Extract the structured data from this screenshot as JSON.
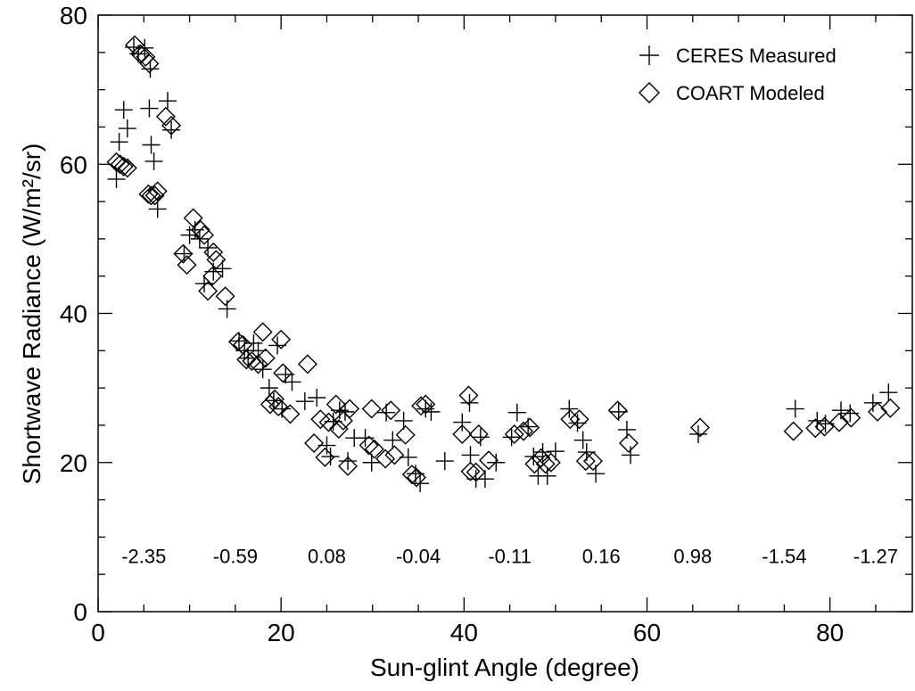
{
  "chart_data": {
    "type": "scatter",
    "xlabel": "Sun-glint Angle (degree)",
    "ylabel": "Shortwave Radiance (W/m²/sr)",
    "xlim": [
      0,
      89
    ],
    "ylim": [
      0,
      80
    ],
    "x_ticks": [
      0,
      20,
      40,
      60,
      80
    ],
    "y_ticks": [
      0,
      20,
      40,
      60,
      80
    ],
    "grid": false,
    "legend_position": "top-right",
    "annotations": [
      {
        "text": "-2.35",
        "x": 5,
        "y": 7.5
      },
      {
        "text": "-0.59",
        "x": 15,
        "y": 7.5
      },
      {
        "text": "0.08",
        "x": 25,
        "y": 7.5
      },
      {
        "text": "-0.04",
        "x": 35,
        "y": 7.5
      },
      {
        "text": "-0.11",
        "x": 45,
        "y": 7.5
      },
      {
        "text": "0.16",
        "x": 55,
        "y": 7.5
      },
      {
        "text": "0.98",
        "x": 65,
        "y": 7.5
      },
      {
        "text": "-1.54",
        "x": 75,
        "y": 7.5
      },
      {
        "text": "-1.27",
        "x": 85,
        "y": 7.5
      }
    ],
    "series": [
      {
        "name": "CERES Measured",
        "marker": "plus",
        "points": [
          [
            2.0,
            58.0
          ],
          [
            2.3,
            63.0
          ],
          [
            2.8,
            67.3
          ],
          [
            3.2,
            64.8
          ],
          [
            3.9,
            75.7
          ],
          [
            4.4,
            74.8
          ],
          [
            5.1,
            75.6
          ],
          [
            5.6,
            67.5
          ],
          [
            5.8,
            62.6
          ],
          [
            6.1,
            60.4
          ],
          [
            6.5,
            54.0
          ],
          [
            5.7,
            72.8
          ],
          [
            7.6,
            68.5
          ],
          [
            8.0,
            64.6
          ],
          [
            9.4,
            48.0
          ],
          [
            10.0,
            50.5
          ],
          [
            10.6,
            51.2
          ],
          [
            11.1,
            50.0
          ],
          [
            11.6,
            44.0
          ],
          [
            12.0,
            48.8
          ],
          [
            12.6,
            45.6
          ],
          [
            13.6,
            46.0
          ],
          [
            14.1,
            40.6
          ],
          [
            15.4,
            36.3
          ],
          [
            16.0,
            35.0
          ],
          [
            16.4,
            34.0
          ],
          [
            17.0,
            36.0
          ],
          [
            17.5,
            35.0
          ],
          [
            18.0,
            32.5
          ],
          [
            18.7,
            30.0
          ],
          [
            19.2,
            28.3
          ],
          [
            19.6,
            35.7
          ],
          [
            20.1,
            27.2
          ],
          [
            20.5,
            31.8
          ],
          [
            21.2,
            30.8
          ],
          [
            22.6,
            28.2
          ],
          [
            23.9,
            28.7
          ],
          [
            25.0,
            22.3
          ],
          [
            25.4,
            20.8
          ],
          [
            25.7,
            25.5
          ],
          [
            26.4,
            27.0
          ],
          [
            27.0,
            26.8
          ],
          [
            27.3,
            20.2
          ],
          [
            28.0,
            23.3
          ],
          [
            29.2,
            23.3
          ],
          [
            29.9,
            20.0
          ],
          [
            31.5,
            26.7
          ],
          [
            32.2,
            23.0
          ],
          [
            33.4,
            25.6
          ],
          [
            33.9,
            20.7
          ],
          [
            34.7,
            18.5
          ],
          [
            35.2,
            17.2
          ],
          [
            35.8,
            27.2
          ],
          [
            36.4,
            26.8
          ],
          [
            37.9,
            20.2
          ],
          [
            39.8,
            25.4
          ],
          [
            40.6,
            28.0
          ],
          [
            40.7,
            21.0
          ],
          [
            41.3,
            17.8
          ],
          [
            41.8,
            23.4
          ],
          [
            42.3,
            17.8
          ],
          [
            43.5,
            20.0
          ],
          [
            45.2,
            23.4
          ],
          [
            45.8,
            26.7
          ],
          [
            47.0,
            24.8
          ],
          [
            47.6,
            20.8
          ],
          [
            48.1,
            18.2
          ],
          [
            48.6,
            21.4
          ],
          [
            49.1,
            18.2
          ],
          [
            50.0,
            21.5
          ],
          [
            51.5,
            27.2
          ],
          [
            52.4,
            25.3
          ],
          [
            53.0,
            23.0
          ],
          [
            53.4,
            21.4
          ],
          [
            54.4,
            18.5
          ],
          [
            56.9,
            26.8
          ],
          [
            57.8,
            24.4
          ],
          [
            58.2,
            21.0
          ],
          [
            65.6,
            23.8
          ],
          [
            76.2,
            27.2
          ],
          [
            78.6,
            25.6
          ],
          [
            79.5,
            25.2
          ],
          [
            81.2,
            27.0
          ],
          [
            82.2,
            26.6
          ],
          [
            84.7,
            28.0
          ],
          [
            86.4,
            29.4
          ]
        ]
      },
      {
        "name": "COART Modeled",
        "marker": "diamond",
        "points": [
          [
            2.0,
            60.3
          ],
          [
            2.4,
            60.0
          ],
          [
            2.8,
            59.7
          ],
          [
            3.2,
            59.5
          ],
          [
            4.0,
            76.0
          ],
          [
            4.6,
            74.8
          ],
          [
            5.2,
            74.4
          ],
          [
            5.6,
            73.5
          ],
          [
            5.5,
            56.0
          ],
          [
            5.8,
            55.8
          ],
          [
            6.2,
            55.8
          ],
          [
            6.5,
            56.4
          ],
          [
            7.4,
            66.4
          ],
          [
            8.0,
            65.2
          ],
          [
            9.3,
            48.0
          ],
          [
            9.7,
            46.5
          ],
          [
            10.4,
            52.8
          ],
          [
            11.2,
            51.2
          ],
          [
            11.6,
            50.5
          ],
          [
            12.0,
            43.0
          ],
          [
            12.5,
            45.0
          ],
          [
            12.6,
            48.2
          ],
          [
            12.9,
            47.2
          ],
          [
            13.9,
            42.3
          ],
          [
            15.3,
            36.2
          ],
          [
            15.8,
            35.8
          ],
          [
            16.2,
            33.8
          ],
          [
            16.8,
            33.6
          ],
          [
            17.5,
            33.2
          ],
          [
            18.0,
            37.5
          ],
          [
            18.3,
            34.0
          ],
          [
            18.8,
            27.8
          ],
          [
            19.3,
            28.5
          ],
          [
            19.7,
            27.5
          ],
          [
            20.0,
            36.5
          ],
          [
            20.2,
            32.0
          ],
          [
            21.0,
            26.5
          ],
          [
            22.9,
            33.2
          ],
          [
            23.6,
            22.6
          ],
          [
            24.3,
            25.8
          ],
          [
            24.8,
            20.7
          ],
          [
            25.2,
            25.4
          ],
          [
            26.0,
            27.8
          ],
          [
            26.3,
            24.5
          ],
          [
            26.8,
            25.6
          ],
          [
            27.5,
            27.2
          ],
          [
            27.3,
            19.5
          ],
          [
            29.6,
            22.3
          ],
          [
            30.2,
            21.8
          ],
          [
            29.9,
            27.2
          ],
          [
            31.4,
            20.5
          ],
          [
            32.0,
            27.0
          ],
          [
            32.4,
            21.0
          ],
          [
            33.6,
            23.7
          ],
          [
            34.3,
            18.4
          ],
          [
            34.8,
            18.0
          ],
          [
            35.3,
            27.6
          ],
          [
            35.8,
            27.8
          ],
          [
            39.8,
            23.8
          ],
          [
            40.5,
            29.0
          ],
          [
            40.7,
            18.8
          ],
          [
            41.3,
            18.7
          ],
          [
            41.6,
            23.8
          ],
          [
            42.7,
            20.3
          ],
          [
            45.5,
            23.8
          ],
          [
            46.5,
            24.2
          ],
          [
            47.2,
            24.7
          ],
          [
            47.7,
            19.8
          ],
          [
            48.4,
            20.6
          ],
          [
            48.9,
            19.8
          ],
          [
            49.5,
            20.0
          ],
          [
            51.6,
            25.8
          ],
          [
            52.6,
            25.8
          ],
          [
            53.3,
            20.2
          ],
          [
            54.1,
            20.2
          ],
          [
            56.8,
            27.0
          ],
          [
            58.0,
            22.6
          ],
          [
            65.8,
            24.7
          ],
          [
            76.0,
            24.2
          ],
          [
            78.4,
            24.6
          ],
          [
            79.4,
            24.8
          ],
          [
            81.0,
            25.4
          ],
          [
            82.3,
            26.0
          ],
          [
            85.2,
            26.8
          ],
          [
            86.6,
            27.3
          ]
        ]
      }
    ]
  }
}
